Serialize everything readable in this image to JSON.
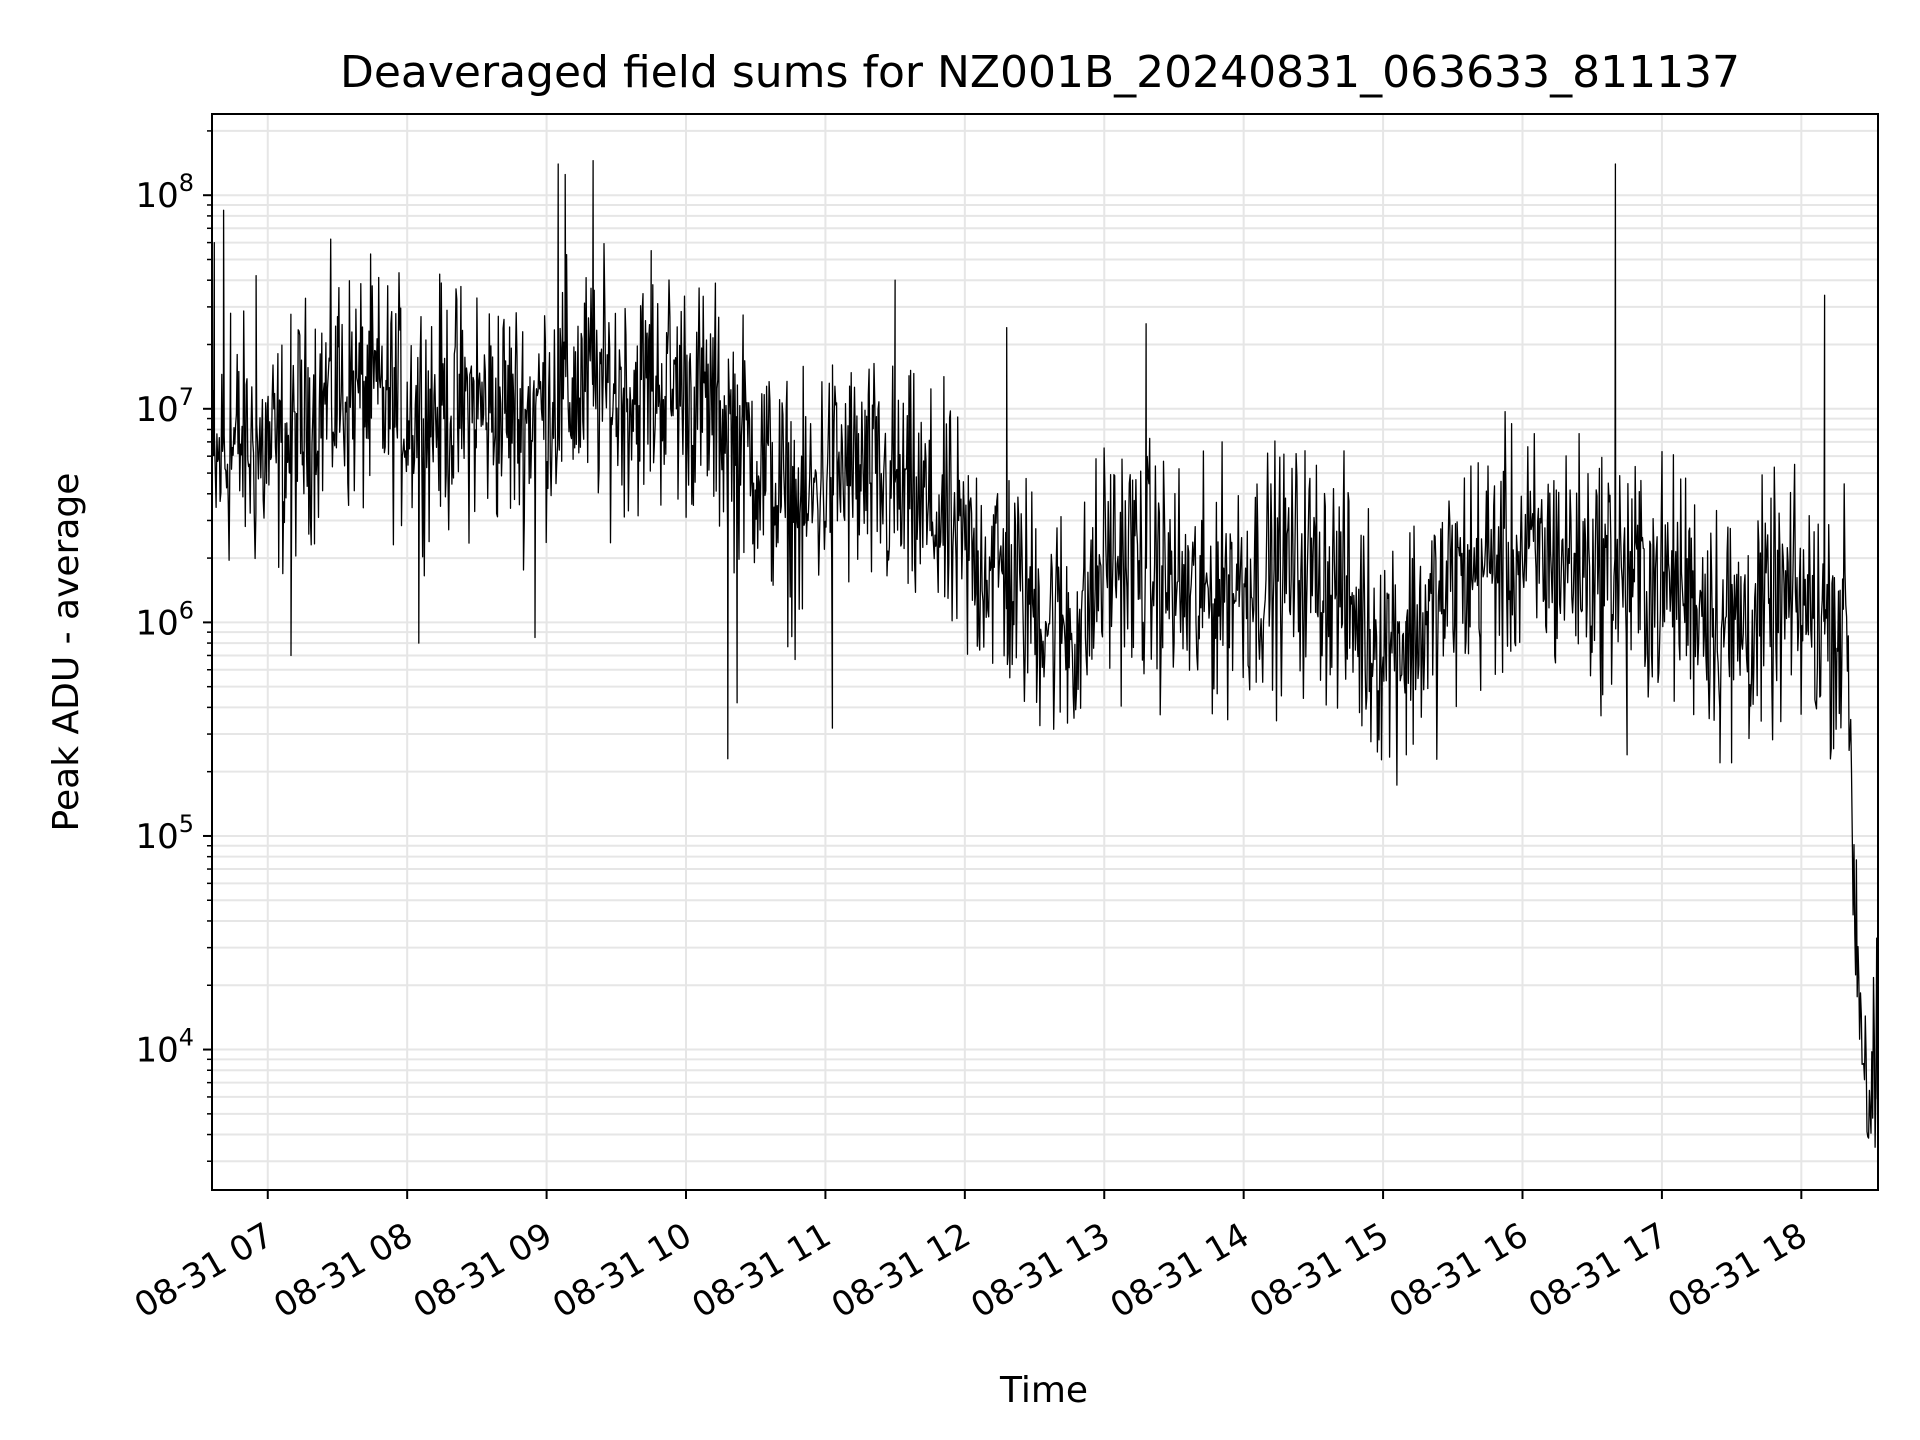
{
  "chart_data": {
    "type": "line",
    "title": "Deaveraged field sums for NZ001B_20240831_063633_811137",
    "xlabel": "Time",
    "ylabel": "Peak ADU - average",
    "yscale": "log",
    "grid": true,
    "line_color": "#000000",
    "grid_color": "#e6e6e6",
    "xlim": [
      "2024-08-31 06:36",
      "2024-08-31 18:33"
    ],
    "ylim": [
      2200,
      240000000
    ],
    "x_ticks": [
      {
        "value": "2024-08-31 07:00",
        "label": "08-31 07"
      },
      {
        "value": "2024-08-31 08:00",
        "label": "08-31 08"
      },
      {
        "value": "2024-08-31 09:00",
        "label": "08-31 09"
      },
      {
        "value": "2024-08-31 10:00",
        "label": "08-31 10"
      },
      {
        "value": "2024-08-31 11:00",
        "label": "08-31 11"
      },
      {
        "value": "2024-08-31 12:00",
        "label": "08-31 12"
      },
      {
        "value": "2024-08-31 13:00",
        "label": "08-31 13"
      },
      {
        "value": "2024-08-31 14:00",
        "label": "08-31 14"
      },
      {
        "value": "2024-08-31 15:00",
        "label": "08-31 15"
      },
      {
        "value": "2024-08-31 16:00",
        "label": "08-31 16"
      },
      {
        "value": "2024-08-31 17:00",
        "label": "08-31 17"
      },
      {
        "value": "2024-08-31 18:00",
        "label": "08-31 18"
      }
    ],
    "y_ticks": [
      {
        "value": 10000,
        "base": "10",
        "exp": "4"
      },
      {
        "value": 100000,
        "base": "10",
        "exp": "5"
      },
      {
        "value": 1000000,
        "base": "10",
        "exp": "6"
      },
      {
        "value": 10000000,
        "base": "10",
        "exp": "7"
      },
      {
        "value": 100000000,
        "base": "10",
        "exp": "8"
      }
    ],
    "series": [
      {
        "x": [
          "2024-08-31 06:36",
          "2024-08-31 06:38",
          "2024-08-31 06:40",
          "2024-08-31 06:45",
          "2024-08-31 06:50",
          "2024-08-31 06:55",
          "2024-08-31 07:00",
          "2024-08-31 07:05",
          "2024-08-31 07:10",
          "2024-08-31 07:20",
          "2024-08-31 07:30",
          "2024-08-31 07:40",
          "2024-08-31 07:50",
          "2024-08-31 08:00",
          "2024-08-31 08:10",
          "2024-08-31 08:20",
          "2024-08-31 08:30",
          "2024-08-31 08:40",
          "2024-08-31 08:50",
          "2024-08-31 09:00",
          "2024-08-31 09:10",
          "2024-08-31 09:20",
          "2024-08-31 09:30",
          "2024-08-31 09:40",
          "2024-08-31 09:50",
          "2024-08-31 10:00",
          "2024-08-31 10:10",
          "2024-08-31 10:20",
          "2024-08-31 10:30",
          "2024-08-31 10:40",
          "2024-08-31 10:50",
          "2024-08-31 11:00",
          "2024-08-31 11:10",
          "2024-08-31 11:20",
          "2024-08-31 11:30",
          "2024-08-31 11:40",
          "2024-08-31 11:50",
          "2024-08-31 12:00",
          "2024-08-31 12:10",
          "2024-08-31 12:20",
          "2024-08-31 12:30",
          "2024-08-31 12:40",
          "2024-08-31 12:50",
          "2024-08-31 13:00",
          "2024-08-31 13:10",
          "2024-08-31 13:20",
          "2024-08-31 13:30",
          "2024-08-31 13:40",
          "2024-08-31 13:50",
          "2024-08-31 14:00",
          "2024-08-31 14:10",
          "2024-08-31 14:20",
          "2024-08-31 14:30",
          "2024-08-31 14:40",
          "2024-08-31 14:50",
          "2024-08-31 15:00",
          "2024-08-31 15:10",
          "2024-08-31 15:20",
          "2024-08-31 15:30",
          "2024-08-31 15:40",
          "2024-08-31 15:50",
          "2024-08-31 16:00",
          "2024-08-31 16:10",
          "2024-08-31 16:20",
          "2024-08-31 16:30",
          "2024-08-31 16:40",
          "2024-08-31 16:50",
          "2024-08-31 17:00",
          "2024-08-31 17:10",
          "2024-08-31 17:20",
          "2024-08-31 17:30",
          "2024-08-31 17:40",
          "2024-08-31 17:50",
          "2024-08-31 18:00",
          "2024-08-31 18:10",
          "2024-08-31 18:15",
          "2024-08-31 18:20",
          "2024-08-31 18:22",
          "2024-08-31 18:25",
          "2024-08-31 18:28",
          "2024-08-31 18:30",
          "2024-08-31 18:33"
        ],
        "y": [
          4000000,
          5000000,
          6000000,
          6500000,
          7000000,
          6000000,
          6500000,
          6000000,
          7000000,
          10000000,
          12000000,
          12000000,
          11000000,
          10000000,
          10000000,
          10000000,
          10000000,
          10000000,
          9000000,
          11000000,
          12000000,
          13000000,
          12000000,
          12000000,
          13000000,
          12000000,
          10000000,
          8000000,
          6000000,
          4000000,
          3000000,
          5000000,
          5000000,
          4500000,
          4000000,
          3500000,
          3000000,
          2000000,
          2000000,
          1500000,
          1200000,
          1000000,
          900000,
          2000000,
          2000000,
          1800000,
          1500000,
          1200000,
          1500000,
          1600000,
          1700000,
          1800000,
          1800000,
          1500000,
          1000000,
          800000,
          900000,
          1000000,
          1500000,
          1800000,
          2000000,
          2000000,
          2000000,
          2000000,
          1800000,
          1800000,
          1600000,
          1500000,
          1500000,
          1200000,
          1000000,
          1000000,
          1200000,
          1200000,
          1000000,
          1000000,
          1000000,
          100000,
          20000,
          8000,
          5000,
          9000
        ]
      }
    ],
    "spikes": [
      {
        "x": "2024-08-31 06:37",
        "y": 60000000
      },
      {
        "x": "2024-08-31 06:41",
        "y": 85000000
      },
      {
        "x": "2024-08-31 06:44",
        "y": 28000000
      },
      {
        "x": "2024-08-31 06:55",
        "y": 42000000
      },
      {
        "x": "2024-08-31 07:30",
        "y": 27000000
      },
      {
        "x": "2024-08-31 08:30",
        "y": 33000000
      },
      {
        "x": "2024-08-31 09:05",
        "y": 140000000
      },
      {
        "x": "2024-08-31 09:08",
        "y": 125000000
      },
      {
        "x": "2024-08-31 09:20",
        "y": 145000000
      },
      {
        "x": "2024-08-31 09:45",
        "y": 55000000
      },
      {
        "x": "2024-08-31 11:30",
        "y": 40000000
      },
      {
        "x": "2024-08-31 12:18",
        "y": 24000000
      },
      {
        "x": "2024-08-31 13:18",
        "y": 25000000
      },
      {
        "x": "2024-08-31 16:40",
        "y": 140000000
      },
      {
        "x": "2024-08-31 18:10",
        "y": 34000000
      }
    ],
    "dips": [
      {
        "x": "2024-08-31 07:10",
        "y": 700000
      },
      {
        "x": "2024-08-31 08:05",
        "y": 800000
      },
      {
        "x": "2024-08-31 08:55",
        "y": 850000
      },
      {
        "x": "2024-08-31 10:18",
        "y": 230000
      },
      {
        "x": "2024-08-31 10:22",
        "y": 420000
      },
      {
        "x": "2024-08-31 11:03",
        "y": 320000
      },
      {
        "x": "2024-08-31 15:10",
        "y": 240000
      },
      {
        "x": "2024-08-31 16:45",
        "y": 240000
      },
      {
        "x": "2024-08-31 17:25",
        "y": 220000
      },
      {
        "x": "2024-08-31 17:30",
        "y": 220000
      }
    ]
  }
}
